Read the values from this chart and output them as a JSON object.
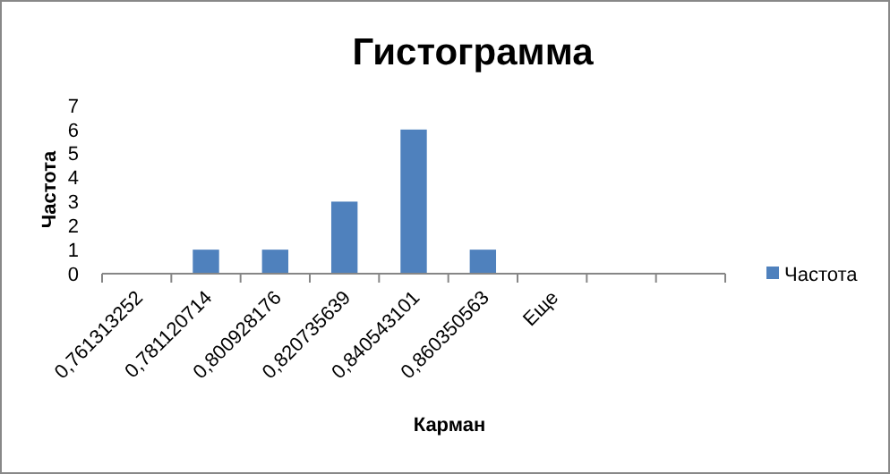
{
  "chart_data": {
    "type": "bar",
    "title": "Гистограмма",
    "xlabel": "Карман",
    "ylabel": "Частота",
    "categories": [
      "0,761313252",
      "0,781120714",
      "0,800928176",
      "0,820735639",
      "0,840543101",
      "0,860350563",
      "Еще",
      null,
      null
    ],
    "series": [
      {
        "name": "Частота",
        "color": "#4f81bd",
        "values": [
          0,
          1,
          1,
          3,
          6,
          1,
          0,
          null,
          null
        ]
      }
    ],
    "ylim": [
      0,
      7
    ],
    "yticks": [
      0,
      1,
      2,
      3,
      4,
      5,
      6,
      7
    ],
    "grid": false,
    "legend": "right"
  }
}
